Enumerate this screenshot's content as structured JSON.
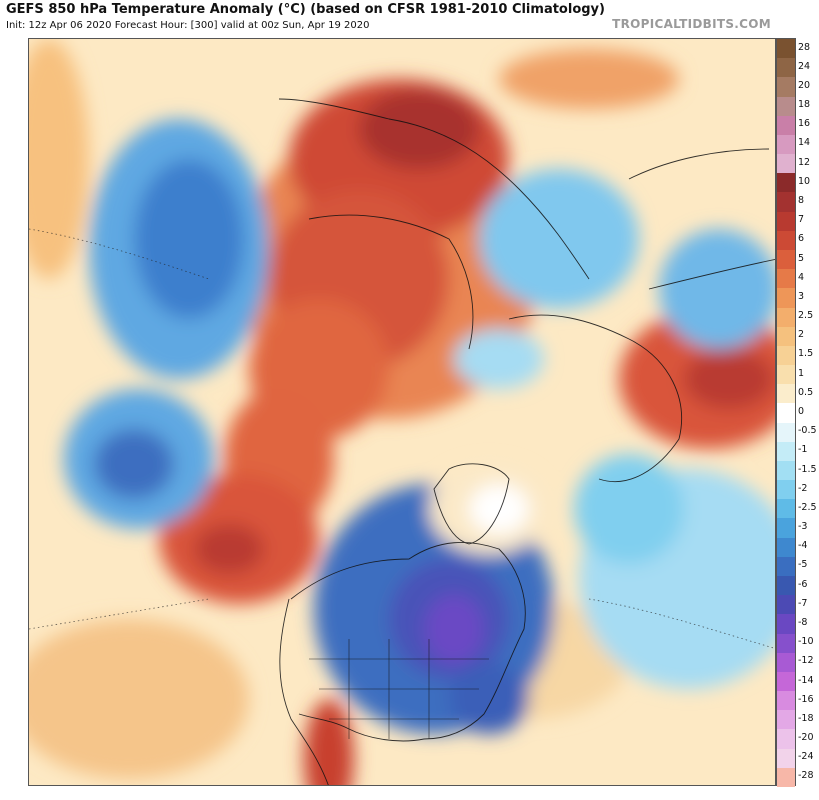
{
  "header": {
    "title": "GEFS 850 hPa Temperature Anomaly (°C) (based on CFSR 1981-2010 Climatology)",
    "subtitle": "Init: 12z Apr 06 2020   Forecast Hour: [300]   valid at 00z Sun, Apr 19 2020",
    "source": "TROPICALTIDBITS.COM"
  },
  "colorbar": {
    "labels": [
      "28",
      "24",
      "20",
      "18",
      "16",
      "14",
      "12",
      "10",
      "8",
      "7",
      "6",
      "5",
      "4",
      "3",
      "2.5",
      "2",
      "1.5",
      "1",
      "0.5",
      "0",
      "-0.5",
      "-1",
      "-1.5",
      "-2",
      "-2.5",
      "-3",
      "-4",
      "-5",
      "-6",
      "-7",
      "-8",
      "-10",
      "-12",
      "-14",
      "-16",
      "-18",
      "-20",
      "-24",
      "-28"
    ],
    "colors": [
      "#7a5230",
      "#8e6545",
      "#a57b63",
      "#b88c8c",
      "#c97fa8",
      "#d79ac0",
      "#e0b1cf",
      "#8b2a2a",
      "#a33230",
      "#b83a30",
      "#cc4a35",
      "#db5f3c",
      "#e67a48",
      "#ee9658",
      "#f3ae6c",
      "#f5c17e",
      "#f7d195",
      "#f9dfad",
      "#fbedcc",
      "#ffffff",
      "#e5f5fa",
      "#c4ecf7",
      "#a2dff3",
      "#80cfef",
      "#5fbbe7",
      "#4aa3dd",
      "#3e88cf",
      "#3a6ec0",
      "#3958b0",
      "#4c4ab4",
      "#6a48c2",
      "#8650cc",
      "#a85ad4",
      "#c567d8",
      "#d88be0",
      "#e3a8e6",
      "#ecc2ea",
      "#f2d3ea",
      "#f7b7a8"
    ]
  },
  "map": {
    "description_colors": {
      "warm": "#d9553a",
      "cold": "#3f6fc4",
      "neutral": "#fff4d6"
    }
  }
}
